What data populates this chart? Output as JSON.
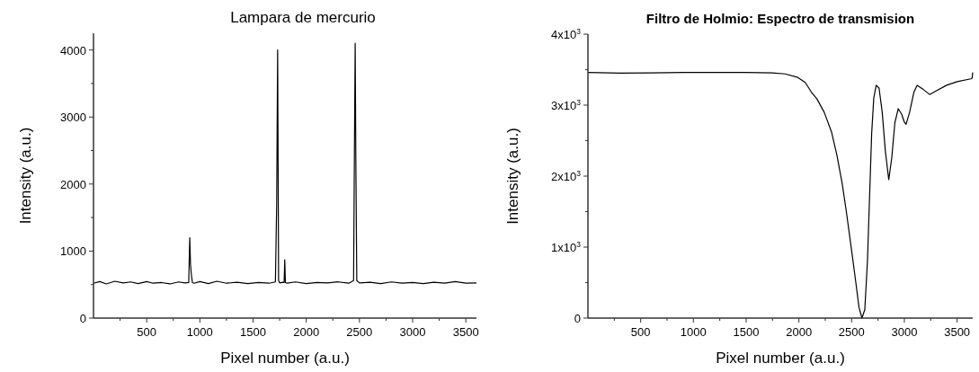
{
  "chart_data": [
    {
      "type": "line",
      "title": "Lampara de mercurio",
      "xlabel": "Pixel number (a.u.)",
      "ylabel": "Intensity (a.u.)",
      "xlim": [
        0,
        3600
      ],
      "ylim": [
        0,
        4250
      ],
      "xticks": [
        {
          "value": 250,
          "label": null
        },
        500,
        {
          "value": 750,
          "label": null
        },
        1000,
        {
          "value": 1250,
          "label": null
        },
        1500,
        {
          "value": 1750,
          "label": null
        },
        2000,
        {
          "value": 2250,
          "label": null
        },
        2500,
        {
          "value": 2750,
          "label": null
        },
        3000,
        {
          "value": 3250,
          "label": null
        },
        3500
      ],
      "yticks": [
        0,
        {
          "value": 500,
          "label": null
        },
        1000,
        {
          "value": 1500,
          "label": null
        },
        2000,
        {
          "value": 2500,
          "label": null
        },
        3000,
        {
          "value": 3500,
          "label": null
        },
        4000
      ],
      "series": [
        {
          "color": "#000000",
          "x": [
            0,
            60,
            120,
            200,
            280,
            350,
            420,
            500,
            560,
            640,
            720,
            800,
            860,
            895,
            905,
            912,
            920,
            930,
            945,
            1000,
            1080,
            1160,
            1250,
            1350,
            1450,
            1550,
            1650,
            1710,
            1722,
            1731,
            1740,
            1750,
            1780,
            1792,
            1798,
            1804,
            1820,
            1900,
            2000,
            2100,
            2200,
            2300,
            2400,
            2445,
            2455,
            2460,
            2466,
            2475,
            2500,
            2600,
            2700,
            2800,
            2900,
            3000,
            3100,
            3200,
            3300,
            3400,
            3500,
            3600
          ],
          "values": [
            520,
            545,
            510,
            550,
            525,
            540,
            515,
            545,
            520,
            530,
            510,
            540,
            525,
            530,
            1200,
            800,
            650,
            530,
            520,
            545,
            515,
            550,
            520,
            535,
            515,
            530,
            520,
            540,
            1700,
            4000,
            560,
            525,
            535,
            530,
            870,
            530,
            520,
            540,
            515,
            530,
            525,
            540,
            520,
            560,
            3000,
            4100,
            2400,
            560,
            525,
            535,
            515,
            540,
            520,
            530,
            515,
            535,
            520,
            545,
            520,
            525
          ]
        }
      ]
    },
    {
      "type": "line",
      "title": "Filtro de Holmio: Espectro de transmision",
      "xlabel": "Pixel number (a.u.)",
      "ylabel": "Intensity (a.u.)",
      "xlim": [
        0,
        3648
      ],
      "ylim": [
        0,
        4000
      ],
      "xticks": [
        {
          "value": 250,
          "label": null
        },
        500,
        {
          "value": 750,
          "label": null
        },
        1000,
        {
          "value": 1250,
          "label": null
        },
        1500,
        {
          "value": 1750,
          "label": null
        },
        2000,
        {
          "value": 2250,
          "label": null
        },
        2500,
        {
          "value": 2750,
          "label": null
        },
        3000,
        {
          "value": 3250,
          "label": null
        },
        3500
      ],
      "yticks": [
        0,
        {
          "value": 500,
          "label": null
        },
        {
          "value": 1000,
          "label": "1x10$^{3}$"
        },
        {
          "value": 1500,
          "label": null
        },
        {
          "value": 2000,
          "label": "2x10$^{3}$"
        },
        {
          "value": 2500,
          "label": null
        },
        {
          "value": 3000,
          "label": "3x10$^{3}$"
        },
        {
          "value": 3500,
          "label": null
        },
        {
          "value": 4000,
          "label": "4x10$^{3}$"
        }
      ],
      "series": [
        {
          "color": "#000000",
          "x": [
            0,
            300,
            600,
            900,
            1200,
            1500,
            1750,
            1870,
            1990,
            2060,
            2120,
            2170,
            2240,
            2310,
            2360,
            2410,
            2450,
            2500,
            2540,
            2570,
            2598,
            2625,
            2650,
            2670,
            2690,
            2710,
            2733,
            2760,
            2790,
            2820,
            2852,
            2880,
            2910,
            2942,
            2975,
            3000,
            3016,
            3050,
            3090,
            3121,
            3180,
            3240,
            3300,
            3400,
            3500,
            3630,
            3642,
            3648
          ],
          "values": [
            3460,
            3450,
            3455,
            3460,
            3460,
            3460,
            3455,
            3440,
            3390,
            3320,
            3180,
            3090,
            2900,
            2620,
            2300,
            1900,
            1500,
            950,
            500,
            150,
            0,
            120,
            800,
            1700,
            2600,
            3100,
            3280,
            3240,
            2900,
            2350,
            1950,
            2250,
            2750,
            2950,
            2870,
            2760,
            2730,
            2900,
            3180,
            3280,
            3220,
            3150,
            3200,
            3280,
            3330,
            3370,
            3380,
            3460
          ]
        }
      ]
    }
  ]
}
